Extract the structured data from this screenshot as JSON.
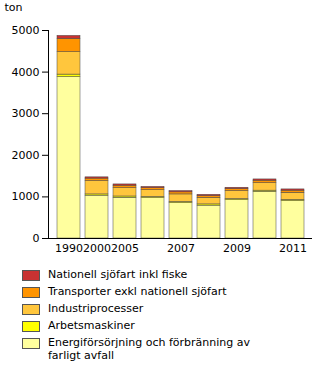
{
  "chart_data": {
    "type": "bar",
    "stacked": true,
    "y_label": "ton",
    "categories": [
      "1990",
      "2000",
      "2005",
      null,
      "2007",
      null,
      "2009",
      null,
      "2011"
    ],
    "series": [
      {
        "name": "Energiförsörjning och förbränning av farligt avfall",
        "color": "#ffff9e",
        "values": [
          3880,
          1030,
          980,
          970,
          850,
          790,
          920,
          1120,
          900
        ]
      },
      {
        "name": "Arbetsmaskiner",
        "color": "#ffff00",
        "values": [
          60,
          30,
          30,
          30,
          30,
          30,
          30,
          30,
          30
        ]
      },
      {
        "name": "Industriprocesser",
        "color": "#ffc63d",
        "values": [
          540,
          320,
          200,
          160,
          180,
          160,
          190,
          180,
          170
        ]
      },
      {
        "name": "Transporter exkl nationell sjöfart",
        "color": "#ff9400",
        "values": [
          320,
          60,
          60,
          50,
          50,
          40,
          50,
          60,
          50
        ]
      },
      {
        "name": "Nationell sjöfart inkl fiske",
        "color": "#c83232",
        "values": [
          70,
          30,
          30,
          30,
          30,
          30,
          30,
          30,
          30
        ]
      }
    ],
    "ylim": [
      0,
      5000
    ],
    "yticks": [
      0,
      1000,
      2000,
      3000,
      4000,
      5000
    ],
    "grid": false,
    "legend": "bottom"
  }
}
